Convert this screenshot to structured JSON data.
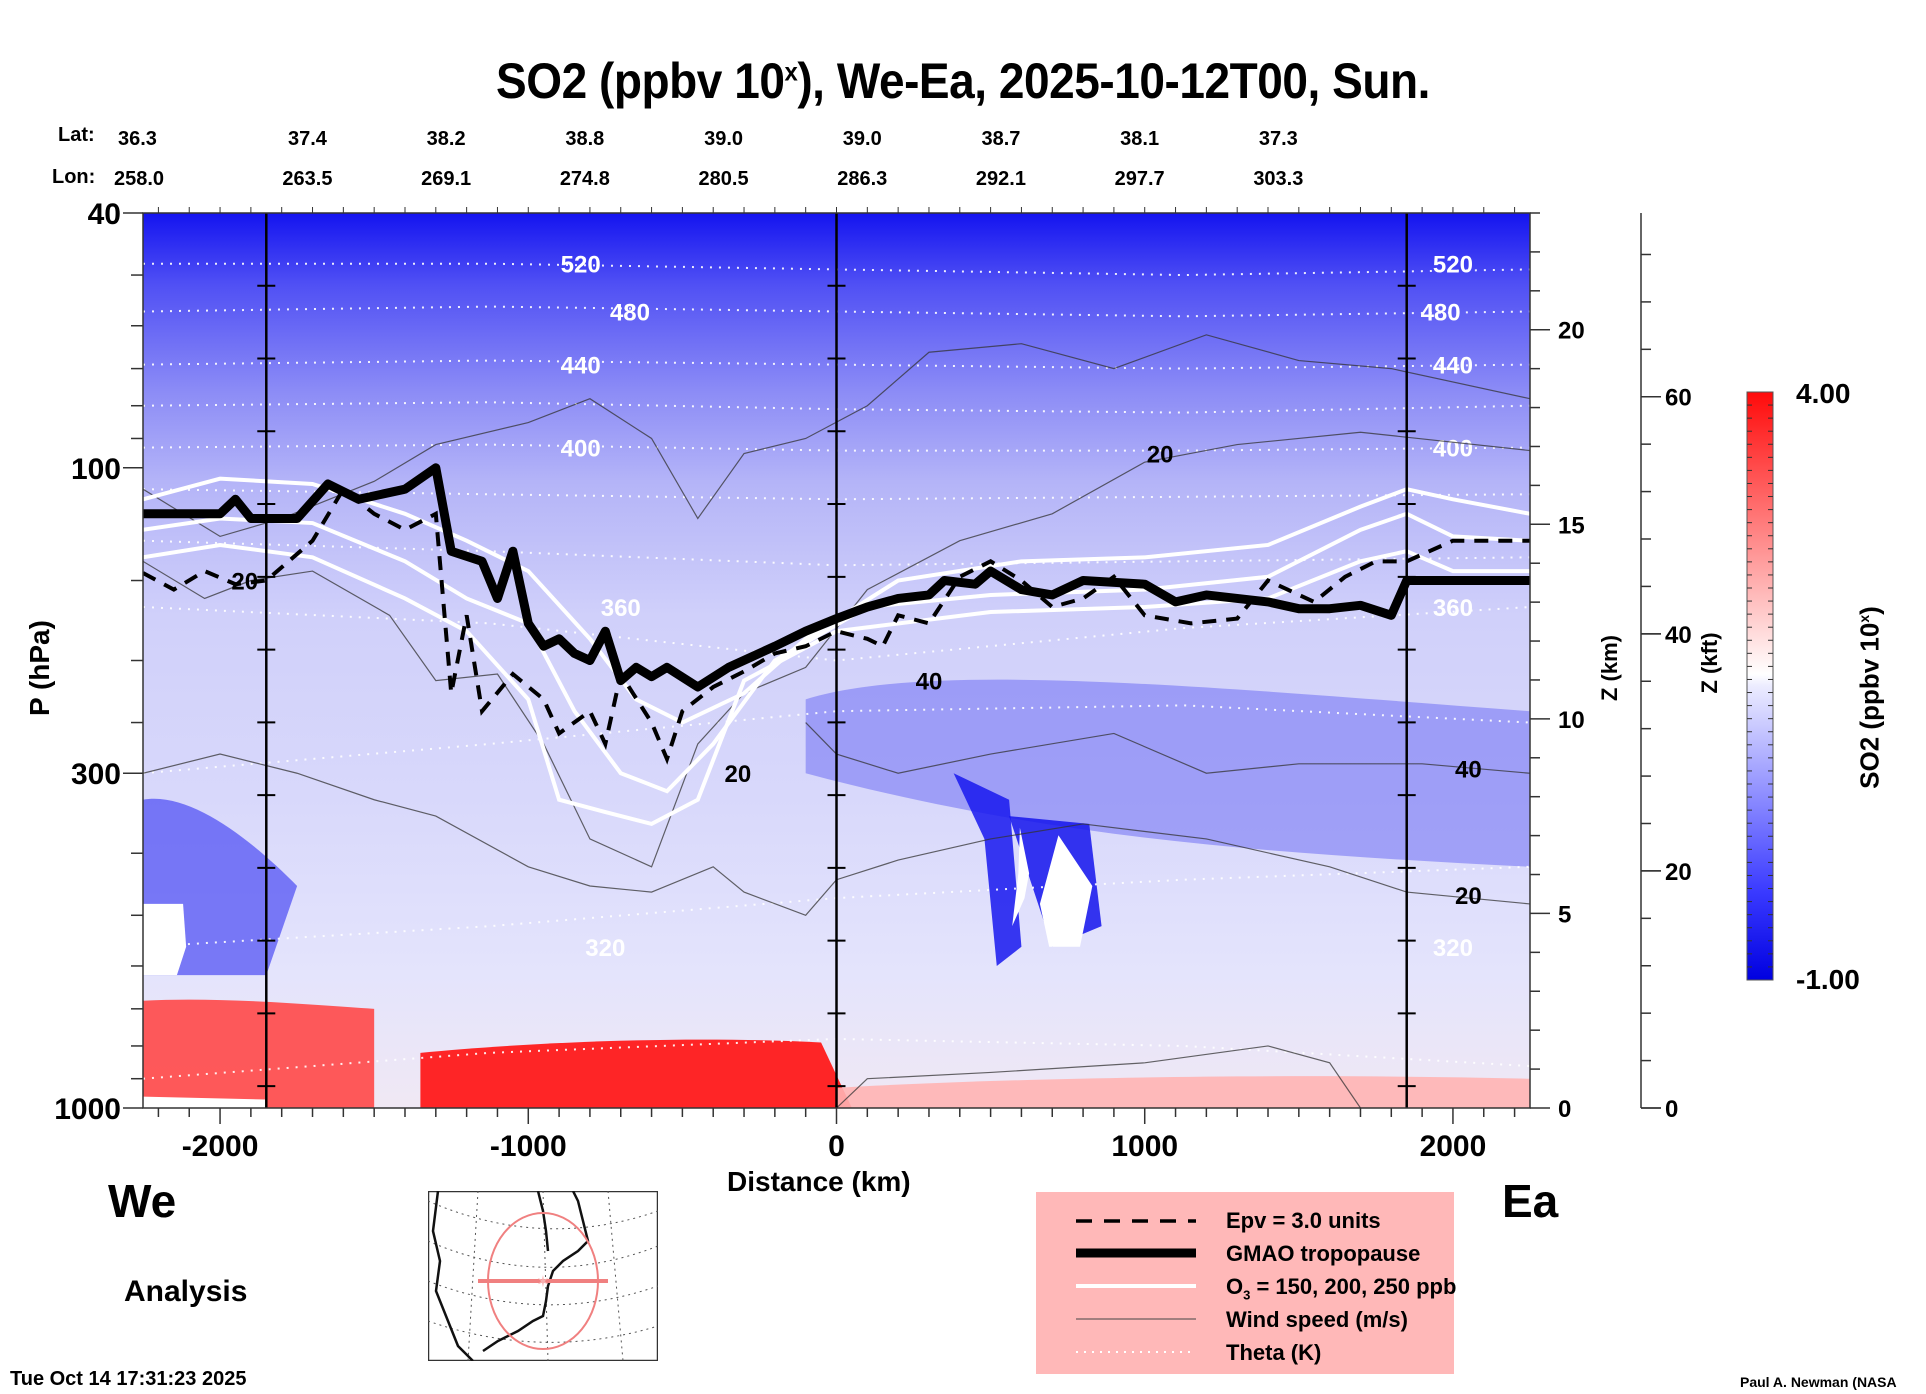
{
  "chart_data": {
    "type": "heatmap",
    "title": "SO2 (ppbv 10",
    "title_sup": "x",
    "title_rest": "), We-Ea, 2025-10-12T00, Sun.",
    "xlabel": "Distance (km)",
    "ylabel": "P (hPa)",
    "xlim": [
      -2250,
      2250
    ],
    "ylim": [
      1000,
      40
    ],
    "yscale": "log",
    "x_ticks": [
      -2000,
      -1000,
      0,
      1000,
      2000
    ],
    "x_tick_labels": [
      "-2000",
      "-1000",
      "0",
      "1000",
      "2000"
    ],
    "y_ticks": [
      40,
      100,
      300,
      1000
    ],
    "y_tick_labels": [
      "40",
      "100",
      "300",
      "1000"
    ],
    "lat_label": "Lat:",
    "lon_label": "Lon:",
    "lat": [
      "36.3",
      "37.4",
      "38.2",
      "38.8",
      "39.0",
      "39.0",
      "38.7",
      "38.1",
      "37.3"
    ],
    "lon": [
      "258.0",
      "263.5",
      "269.1",
      "274.8",
      "280.5",
      "286.3",
      "292.1",
      "297.7",
      "303.3"
    ],
    "marker_lines_km": [
      -1850,
      0,
      1850
    ],
    "z_km_axis": {
      "label": "Z (km)",
      "ticks": [
        0,
        5,
        10,
        15,
        20
      ],
      "tick_labels": [
        "0",
        "5",
        "10",
        "15",
        "20"
      ]
    },
    "z_kft_axis": {
      "label": "Z (kft)",
      "ticks": [
        0,
        20,
        40,
        60
      ],
      "tick_labels": [
        "0",
        "20",
        "40",
        "60"
      ]
    },
    "colorbar": {
      "label": "SO2 (ppbv 10",
      "label_sup": "x",
      "label_end": ")",
      "min": -1.0,
      "max": 4.0,
      "min_label": "-1.00",
      "max_label": "4.00",
      "low_color": "#0000e6",
      "mid_color": "#ffffff",
      "high_color": "#ff0000"
    },
    "theta_contours_K": [
      {
        "value": 520,
        "p": 48,
        "labels_at_km": [
          -830,
          2000
        ]
      },
      {
        "value": 480,
        "p": 57,
        "labels_at_km": [
          -670,
          1960
        ]
      },
      {
        "value": 440,
        "p": 69,
        "labels_at_km": [
          -830,
          2000
        ]
      },
      {
        "value": 400,
        "p": 93,
        "labels_at_km": [
          -830,
          2000
        ]
      },
      {
        "value": 360,
        "p": 165,
        "labels_at_km": [
          -700,
          2000
        ]
      },
      {
        "value": 320,
        "p": 560,
        "labels_at_km": [
          -750,
          2000
        ]
      }
    ],
    "wind_speed_labels_ms": [
      {
        "value": "20",
        "km": -1920,
        "p": 150
      },
      {
        "value": "20",
        "km": 1050,
        "p": 95
      },
      {
        "value": "40",
        "km": 300,
        "p": 215
      },
      {
        "value": "20",
        "km": -320,
        "p": 300
      },
      {
        "value": "40",
        "km": 2050,
        "p": 295
      },
      {
        "value": "20",
        "km": 2050,
        "p": 465
      }
    ],
    "tropopause_hPa": [
      [
        -2250,
        118
      ],
      [
        -2000,
        118
      ],
      [
        -1950,
        112
      ],
      [
        -1900,
        120
      ],
      [
        -1750,
        120
      ],
      [
        -1650,
        106
      ],
      [
        -1550,
        112
      ],
      [
        -1400,
        108
      ],
      [
        -1300,
        100
      ],
      [
        -1250,
        135
      ],
      [
        -1150,
        140
      ],
      [
        -1100,
        160
      ],
      [
        -1050,
        135
      ],
      [
        -1000,
        175
      ],
      [
        -950,
        190
      ],
      [
        -900,
        185
      ],
      [
        -850,
        195
      ],
      [
        -800,
        200
      ],
      [
        -750,
        180
      ],
      [
        -700,
        215
      ],
      [
        -650,
        205
      ],
      [
        -600,
        212
      ],
      [
        -550,
        205
      ],
      [
        -450,
        220
      ],
      [
        -350,
        205
      ],
      [
        -200,
        190
      ],
      [
        -100,
        180
      ],
      [
        0,
        172
      ],
      [
        100,
        165
      ],
      [
        200,
        160
      ],
      [
        300,
        158
      ],
      [
        350,
        150
      ],
      [
        450,
        152
      ],
      [
        500,
        145
      ],
      [
        600,
        155
      ],
      [
        700,
        158
      ],
      [
        800,
        150
      ],
      [
        1000,
        152
      ],
      [
        1100,
        162
      ],
      [
        1200,
        158
      ],
      [
        1400,
        162
      ],
      [
        1500,
        166
      ],
      [
        1600,
        166
      ],
      [
        1700,
        164
      ],
      [
        1800,
        170
      ],
      [
        1850,
        150
      ],
      [
        2000,
        150
      ],
      [
        2250,
        150
      ]
    ],
    "epv3_hPa": [
      [
        -2250,
        146
      ],
      [
        -2150,
        155
      ],
      [
        -2050,
        145
      ],
      [
        -1950,
        152
      ],
      [
        -1850,
        150
      ],
      [
        -1700,
        130
      ],
      [
        -1600,
        108
      ],
      [
        -1500,
        118
      ],
      [
        -1400,
        125
      ],
      [
        -1300,
        118
      ],
      [
        -1250,
        225
      ],
      [
        -1200,
        170
      ],
      [
        -1150,
        240
      ],
      [
        -1050,
        210
      ],
      [
        -950,
        230
      ],
      [
        -900,
        260
      ],
      [
        -800,
        240
      ],
      [
        -750,
        270
      ],
      [
        -700,
        210
      ],
      [
        -600,
        250
      ],
      [
        -550,
        285
      ],
      [
        -500,
        240
      ],
      [
        -400,
        220
      ],
      [
        -300,
        208
      ],
      [
        -200,
        195
      ],
      [
        -100,
        190
      ],
      [
        0,
        180
      ],
      [
        100,
        185
      ],
      [
        150,
        190
      ],
      [
        200,
        170
      ],
      [
        300,
        175
      ],
      [
        400,
        148
      ],
      [
        500,
        140
      ],
      [
        600,
        150
      ],
      [
        700,
        165
      ],
      [
        800,
        160
      ],
      [
        900,
        148
      ],
      [
        1000,
        170
      ],
      [
        1150,
        175
      ],
      [
        1300,
        172
      ],
      [
        1400,
        150
      ],
      [
        1550,
        162
      ],
      [
        1650,
        148
      ],
      [
        1750,
        140
      ],
      [
        1850,
        140
      ],
      [
        2000,
        130
      ],
      [
        2250,
        130
      ]
    ],
    "ozone_ppb_levels": [
      150,
      200,
      250
    ],
    "legend": [
      {
        "style": "dashed",
        "label": "Epv = 3.0 units"
      },
      {
        "style": "thick",
        "label": "GMAO tropopause"
      },
      {
        "style": "white",
        "label_main": "O",
        "label_sub": "3",
        "label_rest": " = 150, 200, 250 ppb"
      },
      {
        "style": "thin",
        "label": "Wind speed (m/s)"
      },
      {
        "style": "dotted",
        "label": "Theta (K)"
      }
    ],
    "legend_placement": "bottom-center"
  },
  "direction_left": "We",
  "direction_right": "Ea",
  "analysis_label": "Analysis",
  "timestamp": "Tue Oct 14 17:31:23 2025",
  "credit": "Paul A. Newman (NASA",
  "inset_map": {
    "region": "North America",
    "circle_color": "#f08080"
  }
}
